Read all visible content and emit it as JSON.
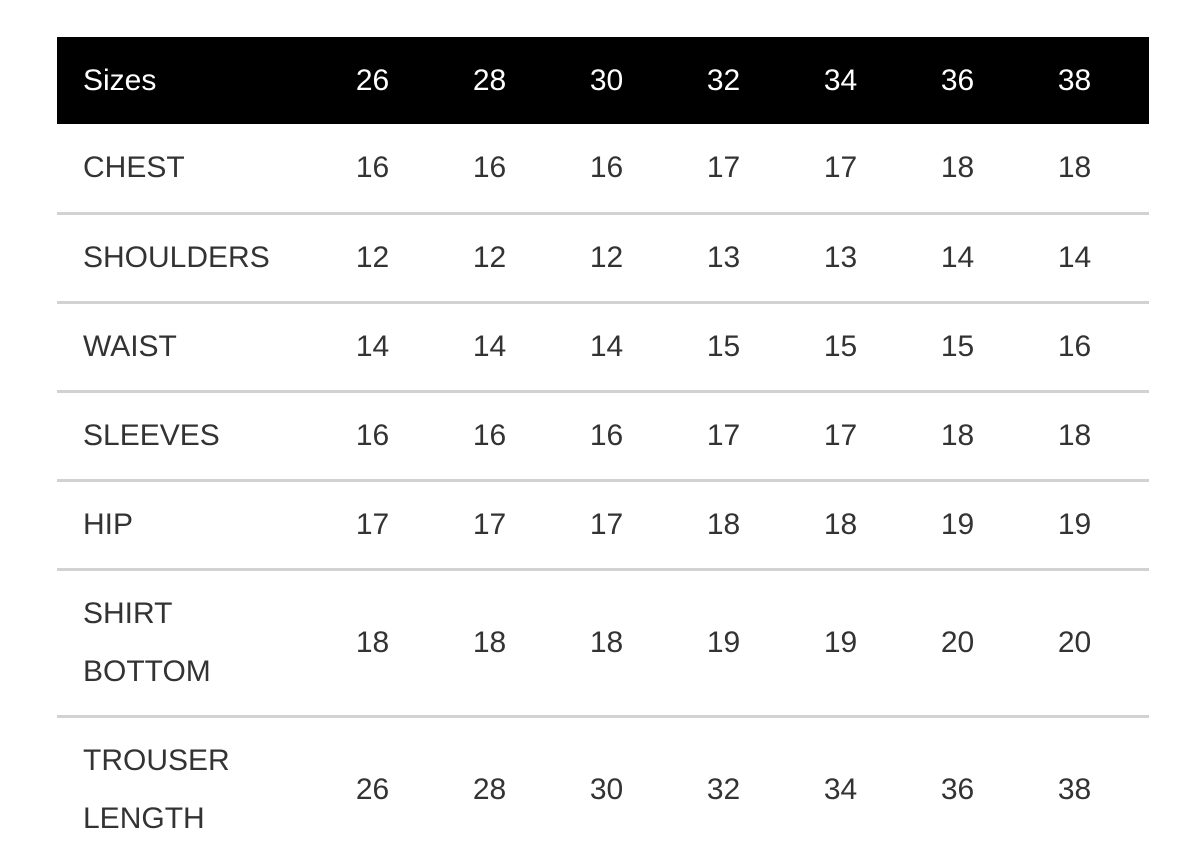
{
  "table": {
    "header": {
      "label": "Sizes",
      "sizes": [
        "26",
        "28",
        "30",
        "32",
        "34",
        "36",
        "38"
      ]
    },
    "rows": [
      {
        "label": "CHEST",
        "values": [
          "16",
          "16",
          "16",
          "17",
          "17",
          "18",
          "18"
        ]
      },
      {
        "label": "SHOULDERS",
        "values": [
          "12",
          "12",
          "12",
          "13",
          "13",
          "14",
          "14"
        ]
      },
      {
        "label": "WAIST",
        "values": [
          "14",
          "14",
          "14",
          "15",
          "15",
          "15",
          "16"
        ]
      },
      {
        "label": "SLEEVES",
        "values": [
          "16",
          "16",
          "16",
          "17",
          "17",
          "18",
          "18"
        ]
      },
      {
        "label": "HIP",
        "values": [
          "17",
          "17",
          "17",
          "18",
          "18",
          "19",
          "19"
        ]
      },
      {
        "label": "SHIRT BOTTOM",
        "values": [
          "18",
          "18",
          "18",
          "19",
          "19",
          "20",
          "20"
        ]
      },
      {
        "label": "TROUSER LENGTH",
        "values": [
          "26",
          "28",
          "30",
          "32",
          "34",
          "36",
          "38"
        ]
      }
    ]
  }
}
